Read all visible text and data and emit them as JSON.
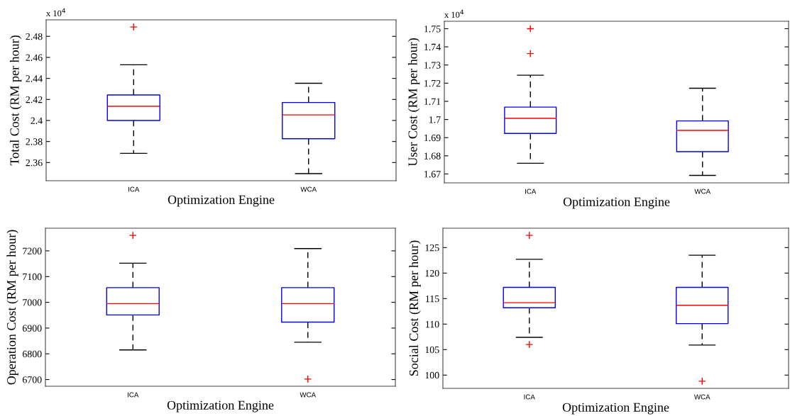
{
  "chart_data": [
    {
      "type": "box",
      "xlabel": "Optimization Engine",
      "ylabel": "Total Cost (RM per hour)",
      "annotations": [
        "x 10$^{4}$"
      ],
      "categories": [
        "ICA",
        "WCA"
      ],
      "color": "#0000ff",
      "ylim": [
        2.3427,
        2.4957
      ],
      "yticks": [
        2.36,
        2.38,
        2.4,
        2.42,
        2.44,
        2.46,
        2.48
      ],
      "marker": "cross",
      "boxes": [
        {
          "low": 2.3687,
          "q1": 2.4,
          "median": 2.4135,
          "q3": 2.4243,
          "high": 2.453,
          "outliers": [
            2.4889
          ]
        },
        {
          "low": 2.3494,
          "q1": 2.3826,
          "median": 2.4053,
          "q3": 2.4171,
          "high": 2.4354
        }
      ]
    },
    {
      "type": "box",
      "xlabel": "Optimization Engine",
      "ylabel": "User Cost (RM per hour)",
      "annotations": [
        "x 10$^{4}$"
      ],
      "categories": [
        "ICA",
        "WCA"
      ],
      "color": "#0000ff",
      "ylim": [
        1.6651,
        1.7541
      ],
      "yticks": [
        1.67,
        1.68,
        1.69,
        1.7,
        1.71,
        1.72,
        1.73,
        1.74,
        1.75
      ],
      "marker": "cross",
      "boxes": [
        {
          "low": 1.6759,
          "q1": 1.6923,
          "median": 1.7006,
          "q3": 1.7068,
          "high": 1.7244,
          "outliers": [
            1.75,
            1.7363
          ]
        },
        {
          "low": 1.6692,
          "q1": 1.6823,
          "median": 1.694,
          "q3": 1.6992,
          "high": 1.7172
        }
      ]
    },
    {
      "type": "box",
      "xlabel": "Optimization Engine",
      "ylabel": "Operation Cost (RM per hour)",
      "categories": [
        "ICA",
        "WCA"
      ],
      "color": "#0000ff",
      "ylim": [
        6674,
        7288
      ],
      "yticks": [
        6700,
        6800,
        6900,
        7000,
        7100,
        7200
      ],
      "marker": "cross",
      "boxes": [
        {
          "low": 6815,
          "q1": 6951,
          "median": 6995,
          "q3": 7057,
          "high": 7152,
          "outliers": [
            7260
          ]
        },
        {
          "low": 6845,
          "q1": 6923,
          "median": 6995,
          "q3": 7057,
          "high": 7209,
          "outliers": [
            6702
          ]
        }
      ]
    },
    {
      "type": "box",
      "xlabel": "Optimization Engine",
      "ylabel": "Social Cost (RM per hour)",
      "categories": [
        "ICA",
        "WCA"
      ],
      "color": "#0000ff",
      "ylim": [
        97.4,
        128.8
      ],
      "yticks": [
        100,
        105,
        110,
        115,
        120,
        125
      ],
      "marker": "cross",
      "boxes": [
        {
          "low": 107.4,
          "q1": 113.2,
          "median": 114.2,
          "q3": 117.2,
          "high": 122.7,
          "outliers": [
            127.4,
            106.0
          ]
        },
        {
          "low": 105.9,
          "q1": 110.1,
          "median": 113.7,
          "q3": 117.2,
          "high": 123.5,
          "outliers": [
            98.8
          ]
        }
      ]
    }
  ]
}
